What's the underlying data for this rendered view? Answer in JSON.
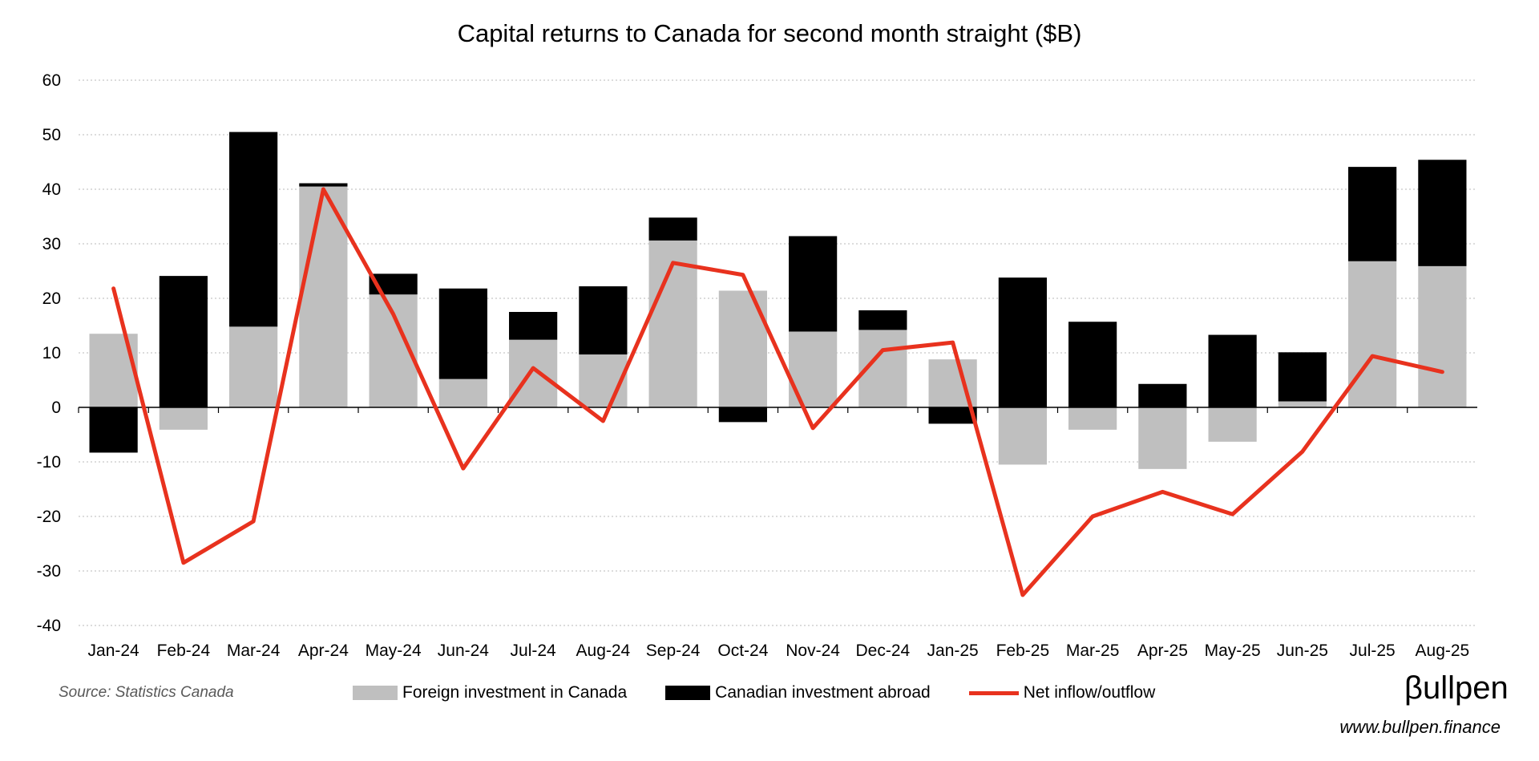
{
  "chart_data": {
    "type": "bar",
    "title": "Capital returns to Canada for second month straight ($B)",
    "categories": [
      "Jan-24",
      "Feb-24",
      "Mar-24",
      "Apr-24",
      "May-24",
      "Jun-24",
      "Jul-24",
      "Aug-24",
      "Sep-24",
      "Oct-24",
      "Nov-24",
      "Dec-24",
      "Jan-25",
      "Feb-25",
      "Mar-25",
      "Apr-25",
      "May-25",
      "Jun-25",
      "Jul-25",
      "Aug-25"
    ],
    "ylim": [
      -40,
      60
    ],
    "yticks": [
      60,
      50,
      40,
      30,
      20,
      10,
      0,
      -10,
      -20,
      -30,
      -40
    ],
    "grid": true,
    "stacked": true,
    "legend_position": "bottom",
    "series": [
      {
        "name": "Foreign investment in Canada",
        "type": "bar",
        "color": "#bfbfbf",
        "values": [
          13.5,
          -4.1,
          14.8,
          40.5,
          20.7,
          5.2,
          12.4,
          9.7,
          30.6,
          21.4,
          13.9,
          14.2,
          8.8,
          -10.5,
          -4.1,
          -11.3,
          -6.3,
          1.1,
          26.8,
          25.9
        ]
      },
      {
        "name": "Canadian investment abroad",
        "type": "bar",
        "color": "#000000",
        "values": [
          -8.3,
          24.1,
          35.7,
          0.6,
          3.8,
          16.6,
          5.1,
          12.5,
          4.2,
          -2.7,
          17.5,
          3.6,
          -3.0,
          23.8,
          15.7,
          4.3,
          13.3,
          9.0,
          17.3,
          19.5
        ]
      },
      {
        "name": "Net inflow/outflow",
        "type": "line",
        "color": "#e8321e",
        "values": [
          21.8,
          -28.5,
          -20.9,
          40.0,
          17.1,
          -11.2,
          7.2,
          -2.5,
          26.5,
          24.3,
          -3.8,
          10.5,
          11.9,
          -34.4,
          -20.0,
          -15.5,
          -19.6,
          -8.1,
          9.4,
          6.5
        ]
      }
    ]
  },
  "footer": {
    "source": "Source: Statistics Canada",
    "logo": "βullpen",
    "url": "www.bullpen.finance"
  }
}
